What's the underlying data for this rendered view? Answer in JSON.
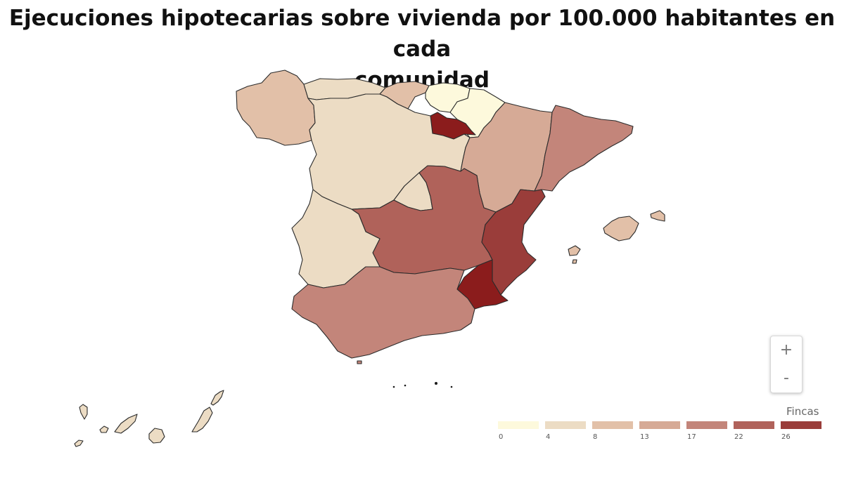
{
  "title_line1": "Ejecuciones hipotecarias sobre vivienda por 100.000 habitantes en cada",
  "title_line2": "comunidad",
  "zoom": {
    "in_label": "+",
    "out_label": "-"
  },
  "legend": {
    "title": "Fincas",
    "ticks": [
      "0",
      "4",
      "8",
      "13",
      "17",
      "22",
      "26"
    ],
    "colors": [
      "#fdf9dc",
      "#ecdcc4",
      "#e2c0a8",
      "#d6aa96",
      "#c3857a",
      "#b0625a",
      "#9a3d3a"
    ]
  },
  "colors": {
    "stroke": "#2b2b2b",
    "peak": "#8b1c1c"
  }
}
